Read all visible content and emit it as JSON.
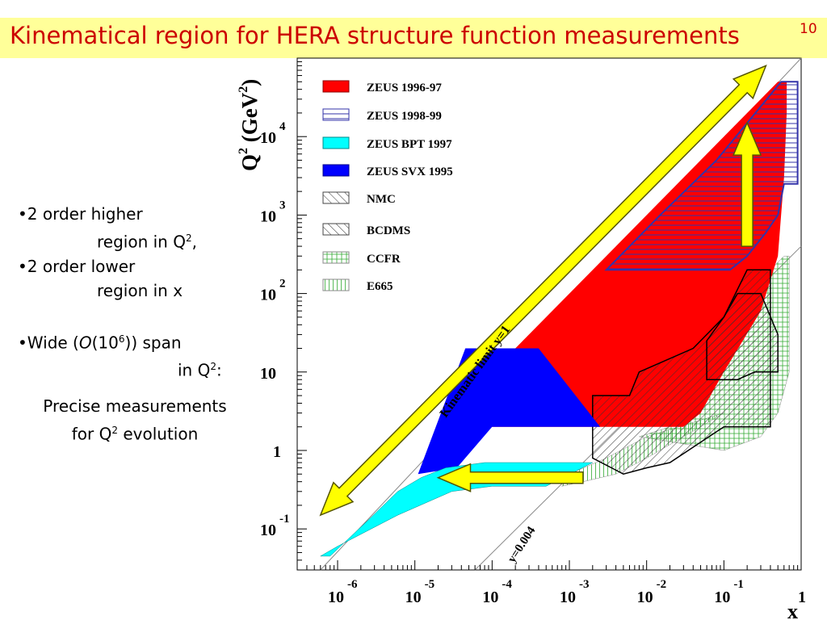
{
  "slide": {
    "title": "Kinematical region for HERA structure function measurements",
    "page_number": "10"
  },
  "notes": {
    "line1_bullet": "•2 order higher",
    "line1_cont_pre": "region in Q",
    "line1_cont_sup": "2",
    "line1_cont_post": ",",
    "line2_bullet": "•2 order lower",
    "line2_cont": "region in x",
    "line3_pre": "•Wide (",
    "line3_O": "O",
    "line3_mid": "(10",
    "line3_sup": "6",
    "line3_post": ")) span",
    "line3_cont_pre": "in Q",
    "line3_cont_sup": "2",
    "line3_cont_post": ":",
    "line4": "Precise measurements",
    "line5_pre": "for Q",
    "line5_sup": "2",
    "line5_post": " evolution"
  },
  "chart_data": {
    "type": "area",
    "title": "",
    "xlabel": "x",
    "ylabel_main": "Q",
    "ylabel_sup1": "2",
    "ylabel_unit": " (GeV",
    "ylabel_sup2": "2",
    "ylabel_close": ")",
    "x_scale": "log",
    "y_scale": "log",
    "xlim": [
      3e-07,
      1
    ],
    "ylim": [
      0.03,
      100000
    ],
    "x_ticks": [
      {
        "base": "10",
        "exp": "-6",
        "value": 1e-06
      },
      {
        "base": "10",
        "exp": "-5",
        "value": 1e-05
      },
      {
        "base": "10",
        "exp": "-4",
        "value": 0.0001
      },
      {
        "base": "10",
        "exp": "-3",
        "value": 0.001
      },
      {
        "base": "10",
        "exp": "-2",
        "value": 0.01
      },
      {
        "base": "10",
        "exp": "-1",
        "value": 0.1
      },
      {
        "base": "1",
        "exp": "",
        "value": 1
      }
    ],
    "y_ticks": [
      {
        "base": "10",
        "exp": "-1",
        "value": 0.1
      },
      {
        "base": "1",
        "exp": "",
        "value": 1
      },
      {
        "base": "10",
        "exp": "",
        "value": 10
      },
      {
        "base": "10",
        "exp": "2",
        "value": 100
      },
      {
        "base": "10",
        "exp": "3",
        "value": 1000
      },
      {
        "base": "10",
        "exp": "4",
        "value": 10000
      }
    ],
    "annotations": {
      "kinematic_limit": "Kinematic limit  y=1",
      "y_low": "y=0.004"
    },
    "legend_position": "top-right",
    "colors": {
      "zeus_9697": "#ff0000",
      "zeus_9899": "#3333aa",
      "zeus_bpt": "#00ffff",
      "zeus_svx": "#0000ff",
      "nmc": "#444444",
      "bcdms": "#444444",
      "ccfr": "#33aa33",
      "e665": "#33aa33",
      "arrow_fill": "#ffff00",
      "arrow_stroke": "#555500"
    },
    "series": [
      {
        "name": "ZEUS 1996-97",
        "style": "solid-red",
        "points": [
          [
            6e-05,
            2
          ],
          [
            0.03,
            2
          ],
          [
            0.05,
            3
          ],
          [
            0.1,
            10
          ],
          [
            0.3,
            60
          ],
          [
            0.5,
            300
          ],
          [
            0.6,
            3000
          ],
          [
            0.65,
            20000
          ],
          [
            0.65,
            50000
          ],
          [
            0.5,
            50000
          ],
          [
            0.003,
            300
          ],
          [
            0.0002,
            20
          ]
        ]
      },
      {
        "name": "ZEUS 1998-99",
        "style": "blue-outline-hatch",
        "points": [
          [
            0.003,
            200
          ],
          [
            0.006,
            400
          ],
          [
            0.015,
            1000
          ],
          [
            0.08,
            5000
          ],
          [
            0.55,
            50000
          ],
          [
            0.9,
            50000
          ],
          [
            0.9,
            2500
          ],
          [
            0.6,
            2500
          ],
          [
            0.5,
            1000
          ],
          [
            0.35,
            600
          ],
          [
            0.2,
            300
          ],
          [
            0.12,
            200
          ]
        ]
      },
      {
        "name": "ZEUS BPT 1997",
        "style": "solid-cyan",
        "points": [
          [
            6e-07,
            0.045
          ],
          [
            1e-06,
            0.06
          ],
          [
            6e-06,
            0.15
          ],
          [
            3e-05,
            0.3
          ],
          [
            0.0001,
            0.35
          ],
          [
            0.0005,
            0.35
          ],
          [
            0.002,
            0.7
          ],
          [
            8e-05,
            0.7
          ],
          [
            2.5e-05,
            0.6
          ],
          [
            1.2e-05,
            0.45
          ],
          [
            6e-06,
            0.3
          ],
          [
            2.5e-06,
            0.13
          ],
          [
            8e-07,
            0.045
          ]
        ]
      },
      {
        "name": "ZEUS SVX 1995",
        "style": "solid-blue",
        "points": [
          [
            1.1e-05,
            0.5
          ],
          [
            3.5e-05,
            0.6
          ],
          [
            0.0001,
            2
          ],
          [
            0.0025,
            2
          ],
          [
            0.0004,
            20
          ],
          [
            4.5e-05,
            20
          ]
        ]
      },
      {
        "name": "NMC",
        "style": "hatch-dark",
        "points": [
          [
            0.002,
            0.8
          ],
          [
            0.002,
            5
          ],
          [
            0.006,
            5
          ],
          [
            0.008,
            10
          ],
          [
            0.04,
            20
          ],
          [
            0.1,
            50
          ],
          [
            0.2,
            200
          ],
          [
            0.4,
            200
          ],
          [
            0.4,
            2
          ],
          [
            0.1,
            2
          ],
          [
            0.02,
            0.7
          ],
          [
            0.01,
            0.6
          ],
          [
            0.005,
            0.5
          ]
        ]
      },
      {
        "name": "BCDMS",
        "style": "hatch-dark",
        "points": [
          [
            0.06,
            8
          ],
          [
            0.06,
            25
          ],
          [
            0.1,
            50
          ],
          [
            0.15,
            100
          ],
          [
            0.3,
            100
          ],
          [
            0.5,
            30
          ],
          [
            0.5,
            10
          ],
          [
            0.25,
            10
          ],
          [
            0.15,
            8
          ]
        ]
      },
      {
        "name": "CCFR",
        "style": "grid-green",
        "points": [
          [
            0.008,
            1.5
          ],
          [
            0.02,
            2
          ],
          [
            0.05,
            5
          ],
          [
            0.1,
            20
          ],
          [
            0.2,
            60
          ],
          [
            0.4,
            200
          ],
          [
            0.6,
            300
          ],
          [
            0.7,
            300
          ],
          [
            0.7,
            10
          ],
          [
            0.5,
            3
          ],
          [
            0.3,
            1.5
          ],
          [
            0.1,
            1
          ]
        ]
      },
      {
        "name": "E665",
        "style": "vhatch-green",
        "points": [
          [
            0.0008,
            0.35
          ],
          [
            0.0015,
            0.4
          ],
          [
            0.004,
            0.5
          ],
          [
            0.01,
            0.8
          ],
          [
            0.03,
            1.5
          ],
          [
            0.05,
            2
          ],
          [
            0.1,
            3
          ],
          [
            0.01,
            1.5
          ],
          [
            0.003,
            0.8
          ],
          [
            0.001,
            0.5
          ]
        ]
      }
    ],
    "arrows": [
      {
        "from": [
          6e-07,
          0.15
        ],
        "to": [
          0.35,
          80000
        ],
        "double": true
      },
      {
        "from": [
          0.2,
          400
        ],
        "to": [
          0.2,
          15000
        ],
        "double": false
      },
      {
        "from": [
          0.0015,
          0.45
        ],
        "to": [
          2e-05,
          0.45
        ],
        "double": false
      }
    ],
    "lines": [
      {
        "name": "kinematic-limit-y1",
        "points": [
          [
            6e-07,
            0.03
          ],
          [
            1,
            100000
          ]
        ]
      },
      {
        "name": "y-0.004",
        "points": [
          [
            6e-05,
            0.03
          ],
          [
            1,
            400
          ]
        ]
      }
    ]
  }
}
